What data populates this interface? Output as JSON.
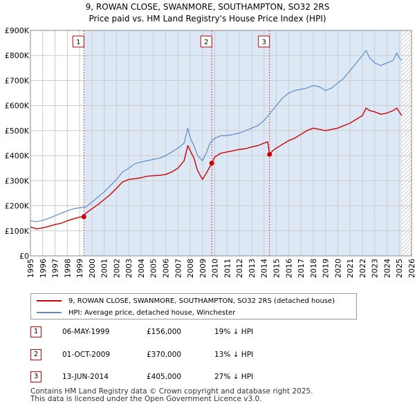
{
  "title_line1": "9, ROWAN CLOSE, SWANMORE, SOUTHAMPTON, SO32 2RS",
  "title_line2": "Price paid vs. HM Land Registry's House Price Index (HPI)",
  "colors": {
    "property": "#cc0000",
    "hpi": "#5b8cc8",
    "shade": "#dde8f6",
    "grid": "#cccccc",
    "hatch": "#999999"
  },
  "chart_data": {
    "type": "line",
    "title": "Price paid vs. HM Land Registry's House Price Index (HPI)",
    "xlabel": "",
    "ylabel": "",
    "xlim": [
      1995,
      2026
    ],
    "ylim": [
      0,
      900000
    ],
    "y_ticks": [
      0,
      100000,
      200000,
      300000,
      400000,
      500000,
      600000,
      700000,
      800000,
      900000
    ],
    "y_tick_labels": [
      "£0",
      "£100K",
      "£200K",
      "£300K",
      "£400K",
      "£500K",
      "£600K",
      "£700K",
      "£800K",
      "£900K"
    ],
    "x_ticks": [
      1995,
      1996,
      1997,
      1998,
      1999,
      2000,
      2001,
      2002,
      2003,
      2004,
      2005,
      2006,
      2007,
      2008,
      2009,
      2010,
      2011,
      2012,
      2013,
      2014,
      2015,
      2016,
      2017,
      2018,
      2019,
      2020,
      2021,
      2022,
      2023,
      2024,
      2025,
      2026
    ],
    "x_tick_labels": [
      "1995",
      "1996",
      "1997",
      "1998",
      "1999",
      "2000",
      "2001",
      "2002",
      "2003",
      "2004",
      "2005",
      "2006",
      "2007",
      "2008",
      "2009",
      "2010",
      "2011",
      "2012",
      "2013",
      "2014",
      "2015",
      "2016",
      "2017",
      "2018",
      "2019",
      "2020",
      "2021",
      "2022",
      "2023",
      "2024",
      "2025",
      "2026"
    ],
    "shaded_from": 1999.35,
    "hatched_from": 2025.2,
    "series": [
      {
        "name": "9, ROWAN CLOSE, SWANMORE, SOUTHAMPTON, SO32 2RS (detached house)",
        "x": [
          1995.0,
          1995.5,
          1996.0,
          1996.5,
          1997.0,
          1997.5,
          1998.0,
          1998.5,
          1999.0,
          1999.35,
          1999.5,
          2000.0,
          2000.5,
          2001.0,
          2001.5,
          2002.0,
          2002.5,
          2003.0,
          2003.5,
          2004.0,
          2004.5,
          2005.0,
          2005.5,
          2006.0,
          2006.5,
          2007.0,
          2007.5,
          2007.8,
          2008.0,
          2008.3,
          2008.6,
          2009.0,
          2009.3,
          2009.75,
          2010.0,
          2010.5,
          2011.0,
          2011.5,
          2012.0,
          2012.5,
          2013.0,
          2013.5,
          2014.0,
          2014.3,
          2014.45,
          2014.7,
          2015.0,
          2015.5,
          2016.0,
          2016.5,
          2017.0,
          2017.5,
          2018.0,
          2018.5,
          2019.0,
          2019.5,
          2020.0,
          2020.5,
          2021.0,
          2021.5,
          2022.0,
          2022.3,
          2022.6,
          2023.0,
          2023.5,
          2024.0,
          2024.5,
          2024.8,
          2025.0,
          2025.2
        ],
        "values": [
          115000,
          108000,
          112000,
          118000,
          125000,
          130000,
          140000,
          148000,
          155000,
          156000,
          170000,
          188000,
          205000,
          225000,
          245000,
          270000,
          295000,
          305000,
          308000,
          312000,
          318000,
          320000,
          322000,
          325000,
          335000,
          350000,
          380000,
          440000,
          420000,
          390000,
          340000,
          305000,
          330000,
          370000,
          395000,
          410000,
          415000,
          420000,
          425000,
          428000,
          435000,
          440000,
          450000,
          455000,
          405000,
          420000,
          430000,
          445000,
          460000,
          470000,
          485000,
          500000,
          510000,
          505000,
          500000,
          505000,
          510000,
          520000,
          530000,
          545000,
          560000,
          590000,
          580000,
          575000,
          565000,
          570000,
          580000,
          590000,
          575000,
          560000
        ]
      },
      {
        "name": "HPI: Average price, detached house, Winchester",
        "x": [
          1995.0,
          1995.5,
          1996.0,
          1996.5,
          1997.0,
          1997.5,
          1998.0,
          1998.5,
          1999.0,
          1999.5,
          2000.0,
          2000.5,
          2001.0,
          2001.5,
          2002.0,
          2002.5,
          2003.0,
          2003.5,
          2004.0,
          2004.5,
          2005.0,
          2005.5,
          2006.0,
          2006.5,
          2007.0,
          2007.5,
          2007.8,
          2008.0,
          2008.3,
          2008.6,
          2009.0,
          2009.3,
          2009.6,
          2010.0,
          2010.5,
          2011.0,
          2011.5,
          2012.0,
          2012.5,
          2013.0,
          2013.5,
          2014.0,
          2014.5,
          2015.0,
          2015.5,
          2016.0,
          2016.5,
          2017.0,
          2017.5,
          2018.0,
          2018.5,
          2019.0,
          2019.5,
          2020.0,
          2020.5,
          2021.0,
          2021.5,
          2022.0,
          2022.3,
          2022.6,
          2023.0,
          2023.5,
          2024.0,
          2024.5,
          2024.8,
          2025.0,
          2025.2
        ],
        "values": [
          140000,
          136000,
          142000,
          150000,
          160000,
          170000,
          180000,
          188000,
          192000,
          195000,
          215000,
          235000,
          255000,
          280000,
          305000,
          335000,
          350000,
          368000,
          375000,
          380000,
          385000,
          390000,
          400000,
          415000,
          430000,
          450000,
          510000,
          470000,
          440000,
          400000,
          380000,
          410000,
          450000,
          470000,
          480000,
          480000,
          485000,
          490000,
          500000,
          510000,
          520000,
          540000,
          570000,
          600000,
          630000,
          650000,
          660000,
          665000,
          670000,
          680000,
          675000,
          660000,
          670000,
          690000,
          710000,
          740000,
          770000,
          800000,
          820000,
          790000,
          770000,
          760000,
          770000,
          780000,
          810000,
          790000,
          780000
        ]
      }
    ],
    "sales": [
      {
        "label": "1",
        "x": 1999.35,
        "value": 156000
      },
      {
        "label": "2",
        "x": 2009.75,
        "value": 370000
      },
      {
        "label": "3",
        "x": 2014.45,
        "value": 405000
      }
    ]
  },
  "legend": {
    "property_label": "9, ROWAN CLOSE, SWANMORE, SOUTHAMPTON, SO32 2RS (detached house)",
    "hpi_label": "HPI: Average price, detached house, Winchester"
  },
  "sales_table": [
    {
      "num": "1",
      "date": "06-MAY-1999",
      "price": "£156,000",
      "hpi": "19% ↓ HPI"
    },
    {
      "num": "2",
      "date": "01-OCT-2009",
      "price": "£370,000",
      "hpi": "13% ↓ HPI"
    },
    {
      "num": "3",
      "date": "13-JUN-2014",
      "price": "£405,000",
      "hpi": "27% ↓ HPI"
    }
  ],
  "footer_line1": "Contains HM Land Registry data © Crown copyright and database right 2025.",
  "footer_line2": "This data is licensed under the Open Government Licence v3.0."
}
